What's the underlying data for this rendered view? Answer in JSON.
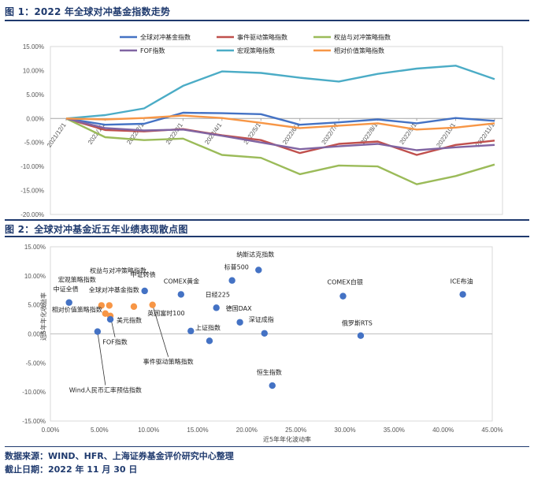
{
  "figure1": {
    "title": "图 1：2022 年全球对冲基金指数走势"
  },
  "figure2": {
    "title": "图 2：全球对冲基金近五年业绩表现散点图"
  },
  "footer": {
    "source": "数据来源：WIND、HFR、上海证券基金评价研究中心整理",
    "date": "截止日期：2022 年 11 月 30 日"
  },
  "chart_data": [
    {
      "type": "line",
      "categories": [
        "2021/12/1",
        "2022/1/1",
        "2022/2/1",
        "2022/3/1",
        "2022/4/1",
        "2022/5/1",
        "2022/6/1",
        "2022/7/1",
        "2022/8/1",
        "2022/9/1",
        "2022/10/1",
        "2022/11/1"
      ],
      "ylim": [
        -20,
        15
      ],
      "yticks": [
        "15.00%",
        "10.00%",
        "5.00%",
        "0.00%",
        "-5.00%",
        "-10.00%",
        "-15.00%",
        "-20.00%"
      ],
      "series": [
        {
          "name": "全球对冲基金指数",
          "color": "#4472c4",
          "values": [
            0,
            -1.3,
            -1.1,
            1.2,
            1.1,
            0.9,
            -1.3,
            -0.8,
            -0.2,
            -1.0,
            0.1,
            -0.5
          ]
        },
        {
          "name": "事件驱动策略指数",
          "color": "#c0504d",
          "values": [
            0,
            -2.4,
            -2.7,
            -2.2,
            -3.5,
            -4.5,
            -7.2,
            -5.3,
            -4.8,
            -7.6,
            -5.5,
            -4.6
          ]
        },
        {
          "name": "权益与对冲策略指数",
          "color": "#9bbb59",
          "values": [
            0,
            -3.9,
            -4.5,
            -4.2,
            -7.6,
            -8.2,
            -11.6,
            -9.8,
            -10.0,
            -13.7,
            -12.0,
            -9.6
          ]
        },
        {
          "name": "FOF指数",
          "color": "#8064a2",
          "values": [
            0,
            -2.0,
            -2.5,
            -2.3,
            -3.6,
            -5.0,
            -6.4,
            -5.8,
            -5.3,
            -6.6,
            -6.0,
            -5.5
          ]
        },
        {
          "name": "宏观策略指数",
          "color": "#4bacc6",
          "values": [
            0,
            0.7,
            2.1,
            6.8,
            9.8,
            9.5,
            8.5,
            7.7,
            9.3,
            10.4,
            11.0,
            8.2
          ]
        },
        {
          "name": "相对价值策略指数",
          "color": "#f79646",
          "values": [
            0,
            -0.2,
            0.1,
            0.6,
            0.1,
            -0.9,
            -2.0,
            -1.5,
            -1.0,
            -2.3,
            -1.9,
            -1.0
          ]
        }
      ]
    },
    {
      "type": "scatter",
      "xlabel": "近5年年化波动率",
      "ylabel": "近5年年化收益率",
      "xlim": [
        0,
        45
      ],
      "ylim": [
        -15,
        15
      ],
      "xticks": [
        "0.00%",
        "5.00%",
        "10.00%",
        "15.00%",
        "20.00%",
        "25.00%",
        "30.00%",
        "35.00%",
        "40.00%",
        "45.00%"
      ],
      "yticks": [
        "15.00%",
        "10.00%",
        "5.00%",
        "0.00%",
        "-5.00%",
        "-10.00%",
        "-15.00%"
      ],
      "points": [
        {
          "label": "中证全债",
          "x": 1.9,
          "y": 5.4,
          "color": "#4472c4"
        },
        {
          "label": "宏观策略指数",
          "x": 5.2,
          "y": 4.9,
          "color": "#f79646"
        },
        {
          "label": "全球对冲基金指数",
          "x": 6.0,
          "y": 4.9,
          "color": "#f79646"
        },
        {
          "label": "权益与对冲策略指数",
          "x": 8.5,
          "y": 4.7,
          "color": "#f79646"
        },
        {
          "label": "事件驱动策略指数",
          "x": 10.4,
          "y": 5.0,
          "color": "#f79646"
        },
        {
          "label": "相对价值策略指数",
          "x": 5.6,
          "y": 3.5,
          "color": "#f79646"
        },
        {
          "label": "FOF指数",
          "x": 6.1,
          "y": 3.1,
          "color": "#f79646"
        },
        {
          "label": "美元指数",
          "x": 6.1,
          "y": 2.5,
          "color": "#4472c4"
        },
        {
          "label": "Wind人民币汇率预估指数",
          "x": 4.8,
          "y": 0.4,
          "color": "#4472c4"
        },
        {
          "label": "中证转债",
          "x": 9.6,
          "y": 7.4,
          "color": "#4472c4"
        },
        {
          "label": "COMEX黄金",
          "x": 13.3,
          "y": 6.8,
          "color": "#4472c4"
        },
        {
          "label": "英国富时100",
          "x": 14.3,
          "y": 0.5,
          "color": "#4472c4"
        },
        {
          "label": "日经225",
          "x": 16.9,
          "y": 4.5,
          "color": "#4472c4"
        },
        {
          "label": "上证指数",
          "x": 16.2,
          "y": -1.2,
          "color": "#4472c4"
        },
        {
          "label": "德国DAX",
          "x": 19.3,
          "y": 2.0,
          "color": "#4472c4"
        },
        {
          "label": "标普500",
          "x": 18.5,
          "y": 9.2,
          "color": "#4472c4"
        },
        {
          "label": "纳斯达克指数",
          "x": 21.2,
          "y": 11.0,
          "color": "#4472c4"
        },
        {
          "label": "深证成指",
          "x": 21.8,
          "y": 0.1,
          "color": "#4472c4"
        },
        {
          "label": "恒生指数",
          "x": 22.6,
          "y": -8.9,
          "color": "#4472c4"
        },
        {
          "label": "COMEX白银",
          "x": 29.8,
          "y": 6.5,
          "color": "#4472c4"
        },
        {
          "label": "俄罗斯RTS",
          "x": 31.6,
          "y": -0.3,
          "color": "#4472c4"
        },
        {
          "label": "ICE布油",
          "x": 42.0,
          "y": 6.8,
          "color": "#4472c4"
        }
      ]
    }
  ]
}
